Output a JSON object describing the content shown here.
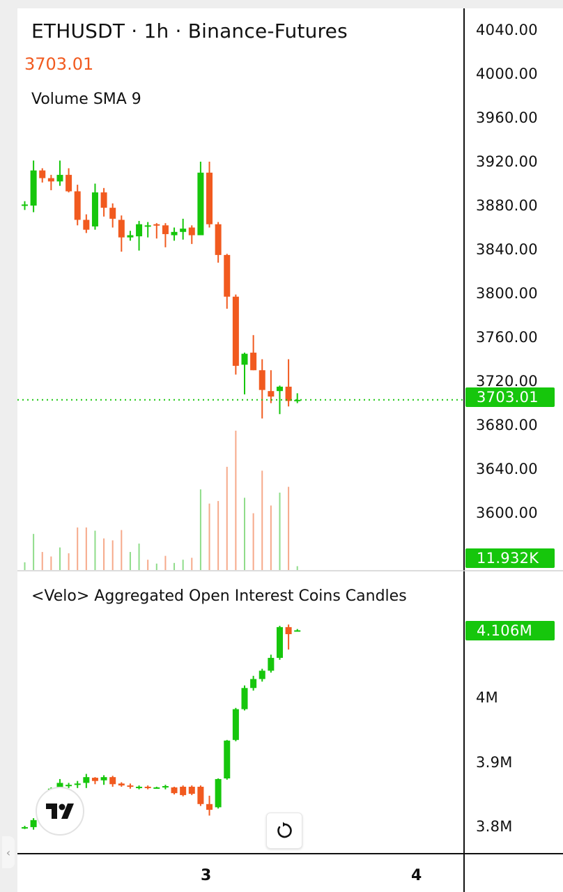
{
  "header": {
    "title": "ETHUSDT · 1h · Binance-Futures",
    "last_price": "3703.01",
    "volume_label": "Volume SMA 9"
  },
  "oi_panel": {
    "title": "<Velo> Aggregated Open Interest Coins Candles"
  },
  "price_axis": {
    "ticks": [
      "4040.00",
      "4000.00",
      "3960.00",
      "3920.00",
      "3880.00",
      "3840.00",
      "3800.00",
      "3760.00",
      "3720.00",
      "3680.00",
      "3640.00",
      "3600.00"
    ],
    "current_price_tag": "3703.01",
    "volume_tag": "11.932K"
  },
  "oi_axis": {
    "ticks": [
      "4M",
      "3.9M",
      "3.8M"
    ],
    "current_tag": "4.106M"
  },
  "time_axis": {
    "ticks": [
      "3",
      "4"
    ]
  },
  "colors": {
    "up": "#16c60c",
    "down": "#f15a1f",
    "volume_up": "#8fdc8a",
    "volume_down": "#f6a98a",
    "text": "#111111"
  },
  "icons": {
    "logo": "tradingview-logo-icon",
    "reset": "reset-chart-icon",
    "handle": "chevron-left-icon"
  },
  "chart_data": [
    {
      "type": "candlestick",
      "title": "ETHUSDT · 1h · Binance-Futures",
      "y_range": [
        3570,
        4060
      ],
      "last_price": 3703.01,
      "candles": [
        {
          "o": 3880,
          "h": 3884,
          "l": 3876,
          "c": 3881
        },
        {
          "o": 3880,
          "h": 3921,
          "l": 3874,
          "c": 3912
        },
        {
          "o": 3912,
          "h": 3914,
          "l": 3901,
          "c": 3905
        },
        {
          "o": 3905,
          "h": 3908,
          "l": 3894,
          "c": 3902
        },
        {
          "o": 3902,
          "h": 3921,
          "l": 3898,
          "c": 3908
        },
        {
          "o": 3908,
          "h": 3914,
          "l": 3892,
          "c": 3893
        },
        {
          "o": 3893,
          "h": 3899,
          "l": 3862,
          "c": 3867
        },
        {
          "o": 3867,
          "h": 3872,
          "l": 3855,
          "c": 3858
        },
        {
          "o": 3861,
          "h": 3900,
          "l": 3858,
          "c": 3892
        },
        {
          "o": 3892,
          "h": 3896,
          "l": 3870,
          "c": 3878
        },
        {
          "o": 3878,
          "h": 3882,
          "l": 3860,
          "c": 3868
        },
        {
          "o": 3867,
          "h": 3871,
          "l": 3838,
          "c": 3851
        },
        {
          "o": 3851,
          "h": 3857,
          "l": 3848,
          "c": 3853
        },
        {
          "o": 3852,
          "h": 3866,
          "l": 3839,
          "c": 3863
        },
        {
          "o": 3862,
          "h": 3865,
          "l": 3851,
          "c": 3862
        },
        {
          "o": 3863,
          "h": 3864,
          "l": 3850,
          "c": 3862
        },
        {
          "o": 3862,
          "h": 3864,
          "l": 3842,
          "c": 3854
        },
        {
          "o": 3853,
          "h": 3860,
          "l": 3848,
          "c": 3856
        },
        {
          "o": 3856,
          "h": 3868,
          "l": 3849,
          "c": 3859
        },
        {
          "o": 3860,
          "h": 3862,
          "l": 3845,
          "c": 3853
        },
        {
          "o": 3853,
          "h": 3920,
          "l": 3853,
          "c": 3910
        },
        {
          "o": 3910,
          "h": 3920,
          "l": 3860,
          "c": 3863
        },
        {
          "o": 3863,
          "h": 3865,
          "l": 3828,
          "c": 3835
        },
        {
          "o": 3835,
          "h": 3836,
          "l": 3786,
          "c": 3797
        },
        {
          "o": 3797,
          "h": 3799,
          "l": 3726,
          "c": 3734
        },
        {
          "o": 3735,
          "h": 3746,
          "l": 3708,
          "c": 3745
        },
        {
          "o": 3746,
          "h": 3762,
          "l": 3730,
          "c": 3730
        },
        {
          "o": 3730,
          "h": 3740,
          "l": 3686,
          "c": 3712
        },
        {
          "o": 3711,
          "h": 3730,
          "l": 3700,
          "c": 3706
        },
        {
          "o": 3711,
          "h": 3716,
          "l": 3690,
          "c": 3715
        },
        {
          "o": 3715,
          "h": 3740,
          "l": 3697,
          "c": 3702
        },
        {
          "o": 3702,
          "h": 3709,
          "l": 3700,
          "c": 3703.01
        }
      ],
      "volume": {
        "label": "Volume SMA 9",
        "last": "11.932K",
        "bars": [
          {
            "v": 1.2,
            "up": true
          },
          {
            "v": 5.6,
            "up": true
          },
          {
            "v": 2.8,
            "up": false
          },
          {
            "v": 2.1,
            "up": false
          },
          {
            "v": 3.5,
            "up": true
          },
          {
            "v": 2.6,
            "up": false
          },
          {
            "v": 6.6,
            "up": false
          },
          {
            "v": 6.6,
            "up": false
          },
          {
            "v": 6.1,
            "up": true
          },
          {
            "v": 4.9,
            "up": false
          },
          {
            "v": 4.6,
            "up": false
          },
          {
            "v": 6.2,
            "up": false
          },
          {
            "v": 2.8,
            "up": true
          },
          {
            "v": 4.1,
            "up": true
          },
          {
            "v": 1.6,
            "up": false
          },
          {
            "v": 1.0,
            "up": true
          },
          {
            "v": 2.2,
            "up": false
          },
          {
            "v": 1.1,
            "up": true
          },
          {
            "v": 1.6,
            "up": true
          },
          {
            "v": 1.9,
            "up": false
          },
          {
            "v": 12.5,
            "up": true
          },
          {
            "v": 10.3,
            "up": false
          },
          {
            "v": 10.7,
            "up": false
          },
          {
            "v": 16.0,
            "up": false
          },
          {
            "v": 21.6,
            "up": false
          },
          {
            "v": 11.2,
            "up": true
          },
          {
            "v": 8.8,
            "up": false
          },
          {
            "v": 15.4,
            "up": false
          },
          {
            "v": 10.0,
            "up": false
          },
          {
            "v": 12.0,
            "up": true
          },
          {
            "v": 12.9,
            "up": false
          },
          {
            "v": 0.6,
            "up": true
          }
        ]
      }
    },
    {
      "type": "candlestick",
      "title": "<Velo> Aggregated Open Interest Coins Candles",
      "y_range": [
        3.77,
        4.16
      ],
      "last": 4.106,
      "candles": [
        {
          "o": 3.798,
          "h": 3.801,
          "l": 3.796,
          "c": 3.799
        },
        {
          "o": 3.799,
          "h": 3.813,
          "l": 3.795,
          "c": 3.81
        },
        {
          "o": 3.818,
          "h": 3.825,
          "l": 3.818,
          "c": 3.822
        },
        {
          "o": 3.823,
          "h": 3.861,
          "l": 3.82,
          "c": 3.859
        },
        {
          "o": 3.86,
          "h": 3.874,
          "l": 3.858,
          "c": 3.868
        },
        {
          "o": 3.864,
          "h": 3.868,
          "l": 3.86,
          "c": 3.865
        },
        {
          "o": 3.865,
          "h": 3.871,
          "l": 3.86,
          "c": 3.867
        },
        {
          "o": 3.868,
          "h": 3.882,
          "l": 3.86,
          "c": 3.877
        },
        {
          "o": 3.876,
          "h": 3.877,
          "l": 3.866,
          "c": 3.871
        },
        {
          "o": 3.872,
          "h": 3.88,
          "l": 3.865,
          "c": 3.877
        },
        {
          "o": 3.877,
          "h": 3.879,
          "l": 3.862,
          "c": 3.866
        },
        {
          "o": 3.867,
          "h": 3.869,
          "l": 3.862,
          "c": 3.864
        },
        {
          "o": 3.864,
          "h": 3.867,
          "l": 3.859,
          "c": 3.862
        },
        {
          "o": 3.862,
          "h": 3.864,
          "l": 3.858,
          "c": 3.862
        },
        {
          "o": 3.862,
          "h": 3.864,
          "l": 3.858,
          "c": 3.86
        },
        {
          "o": 3.861,
          "h": 3.862,
          "l": 3.859,
          "c": 3.861
        },
        {
          "o": 3.862,
          "h": 3.865,
          "l": 3.858,
          "c": 3.863
        },
        {
          "o": 3.861,
          "h": 3.862,
          "l": 3.85,
          "c": 3.852
        },
        {
          "o": 3.862,
          "h": 3.864,
          "l": 3.847,
          "c": 3.849
        },
        {
          "o": 3.862,
          "h": 3.864,
          "l": 3.849,
          "c": 3.851
        },
        {
          "o": 3.862,
          "h": 3.864,
          "l": 3.832,
          "c": 3.835
        },
        {
          "o": 3.835,
          "h": 3.848,
          "l": 3.817,
          "c": 3.826
        },
        {
          "o": 3.83,
          "h": 3.875,
          "l": 3.828,
          "c": 3.874
        },
        {
          "o": 3.875,
          "h": 3.935,
          "l": 3.873,
          "c": 3.934
        },
        {
          "o": 3.935,
          "h": 3.985,
          "l": 3.933,
          "c": 3.983
        },
        {
          "o": 3.983,
          "h": 4.02,
          "l": 3.981,
          "c": 4.016
        },
        {
          "o": 4.016,
          "h": 4.035,
          "l": 4.012,
          "c": 4.03
        },
        {
          "o": 4.03,
          "h": 4.046,
          "l": 4.026,
          "c": 4.043
        },
        {
          "o": 4.043,
          "h": 4.068,
          "l": 4.04,
          "c": 4.063
        },
        {
          "o": 4.063,
          "h": 4.113,
          "l": 4.06,
          "c": 4.111
        },
        {
          "o": 4.111,
          "h": 4.115,
          "l": 4.076,
          "c": 4.1
        },
        {
          "o": 4.106,
          "h": 4.108,
          "l": 4.104,
          "c": 4.106
        }
      ]
    }
  ]
}
